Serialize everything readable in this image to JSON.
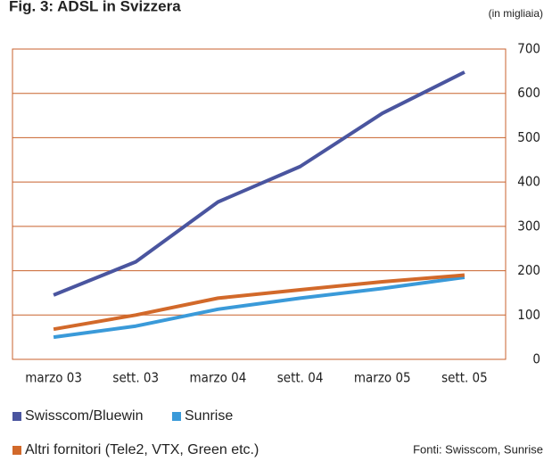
{
  "chart_data": {
    "type": "line",
    "title": "Fig. 3: ADSL in Svizzera",
    "subtitle": "(in migliaia)",
    "categories": [
      "marzo 03",
      "sett. 03",
      "marzo 04",
      "sett. 04",
      "marzo 05",
      "sett. 05"
    ],
    "series": [
      {
        "name": "Swisscom/Bluewin",
        "color": "#4a559f",
        "values": [
          145,
          220,
          355,
          435,
          555,
          648
        ]
      },
      {
        "name": "Sunrise",
        "color": "#3a9ad9",
        "values": [
          50,
          75,
          113,
          138,
          160,
          185
        ]
      },
      {
        "name": "Altri fornitori (Tele2, VTX, Green etc.)",
        "color": "#d2692a",
        "values": [
          68,
          100,
          138,
          157,
          175,
          190
        ]
      }
    ],
    "ylim": [
      0,
      700
    ],
    "yticks": [
      0,
      100,
      200,
      300,
      400,
      500,
      600,
      700
    ],
    "grid": true,
    "grid_color": "#c8622c",
    "source": "Fonti: Swisscom, Sunrise"
  }
}
